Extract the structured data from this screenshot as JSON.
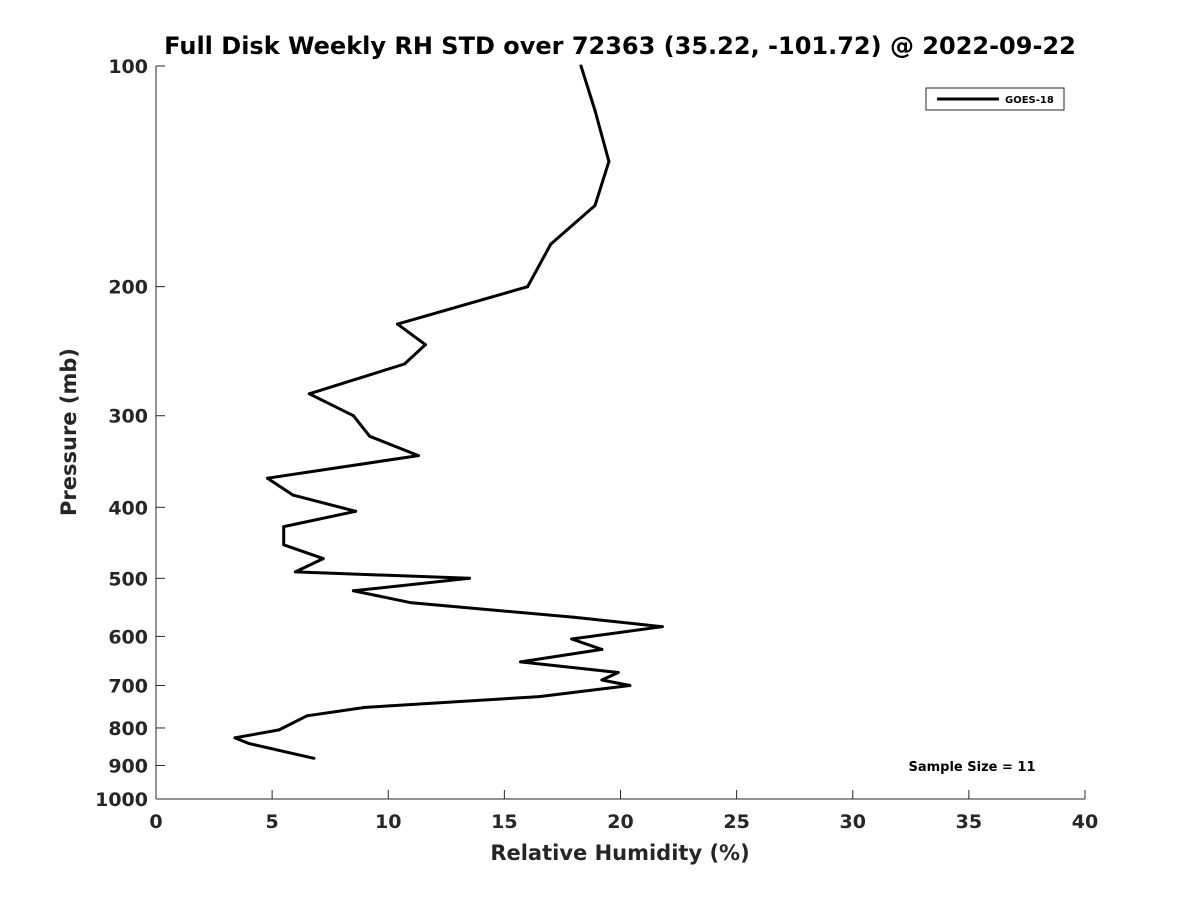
{
  "chart_data": {
    "type": "line",
    "title": "Full Disk Weekly RH STD over 72363 (35.22, -101.72) @ 2022-09-22",
    "xlabel": "Relative Humidity (%)",
    "ylabel": "Pressure (mb)",
    "xlim": [
      0,
      40
    ],
    "ylim": [
      100,
      1000
    ],
    "y_scale": "log",
    "y_reversed": true,
    "grid": false,
    "legend_position": "top-right",
    "x_ticks": [
      0,
      5,
      10,
      15,
      20,
      25,
      30,
      35,
      40
    ],
    "y_ticks": [
      100,
      200,
      300,
      400,
      500,
      600,
      700,
      800,
      900,
      1000
    ],
    "series": [
      {
        "name": "GOES-18",
        "color": "#000000",
        "points": [
          [
            18.3,
            100
          ],
          [
            18.9,
            115
          ],
          [
            19.5,
            135
          ],
          [
            18.9,
            155
          ],
          [
            17.0,
            175
          ],
          [
            16.0,
            200
          ],
          [
            10.4,
            225
          ],
          [
            11.6,
            240
          ],
          [
            10.7,
            255
          ],
          [
            6.6,
            280
          ],
          [
            8.5,
            300
          ],
          [
            9.2,
            320
          ],
          [
            11.3,
            340
          ],
          [
            4.8,
            365
          ],
          [
            5.9,
            385
          ],
          [
            8.6,
            405
          ],
          [
            5.5,
            425
          ],
          [
            5.5,
            450
          ],
          [
            7.2,
            470
          ],
          [
            6.0,
            490
          ],
          [
            13.5,
            500
          ],
          [
            8.5,
            520
          ],
          [
            11.0,
            540
          ],
          [
            18.0,
            565
          ],
          [
            21.8,
            582
          ],
          [
            17.9,
            605
          ],
          [
            19.2,
            625
          ],
          [
            15.7,
            650
          ],
          [
            19.9,
            672
          ],
          [
            19.2,
            688
          ],
          [
            20.4,
            700
          ],
          [
            16.5,
            725
          ],
          [
            9.0,
            750
          ],
          [
            6.5,
            770
          ],
          [
            5.3,
            805
          ],
          [
            3.4,
            825
          ],
          [
            4.0,
            840
          ],
          [
            6.8,
            880
          ]
        ]
      }
    ],
    "annotations": [
      "Sample Size = 11"
    ]
  }
}
